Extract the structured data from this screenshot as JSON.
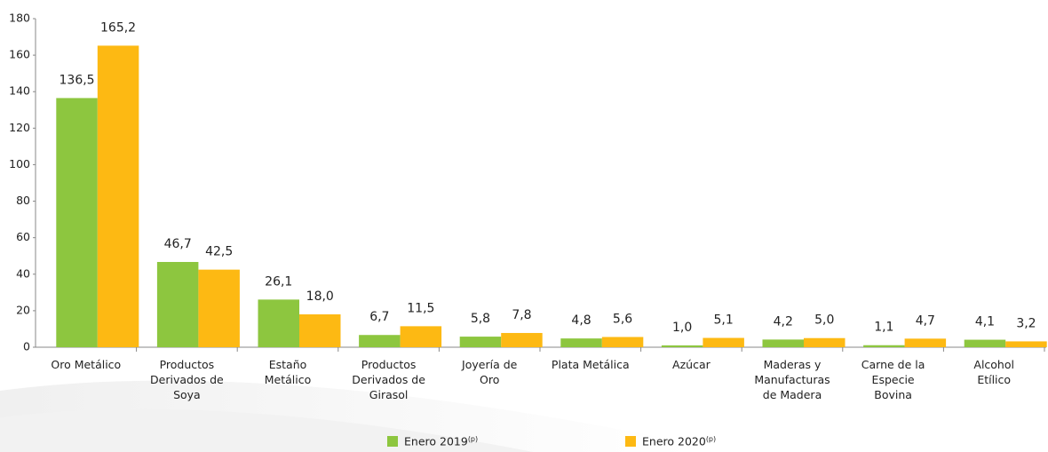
{
  "chart_data": {
    "type": "bar",
    "categories": [
      "Oro Metálico",
      "Productos\nDerivados de\nSoya",
      "Estaño\nMetálico",
      "Productos\nDerivados de\nGirasol",
      "Joyería de\nOro",
      "Plata Metálica",
      "Azúcar",
      "Maderas y\nManufacturas\nde Madera",
      "Carne de la\nEspecie\nBovina",
      "Alcohol\nEtílico"
    ],
    "series": [
      {
        "name": "Enero 2019",
        "note": "(p)",
        "color": "#8dc63f",
        "values": [
          136.5,
          46.7,
          26.1,
          6.7,
          5.8,
          4.8,
          1.0,
          4.2,
          1.1,
          4.1
        ],
        "value_labels": [
          "136,5",
          "46,7",
          "26,1",
          "6,7",
          "5,8",
          "4,8",
          "1,0",
          "4,2",
          "1,1",
          "4,1"
        ]
      },
      {
        "name": "Enero 2020",
        "note": "(p)",
        "color": "#fdb913",
        "values": [
          165.2,
          42.5,
          18.0,
          11.5,
          7.8,
          5.6,
          5.1,
          5.0,
          4.7,
          3.2
        ],
        "value_labels": [
          "165,2",
          "42,5",
          "18,0",
          "11,5",
          "7,8",
          "5,6",
          "5,1",
          "5,0",
          "4,7",
          "3,2"
        ]
      }
    ],
    "ylim": [
      0,
      180
    ],
    "yticks": [
      0,
      20,
      40,
      60,
      80,
      100,
      120,
      140,
      160,
      180
    ]
  }
}
